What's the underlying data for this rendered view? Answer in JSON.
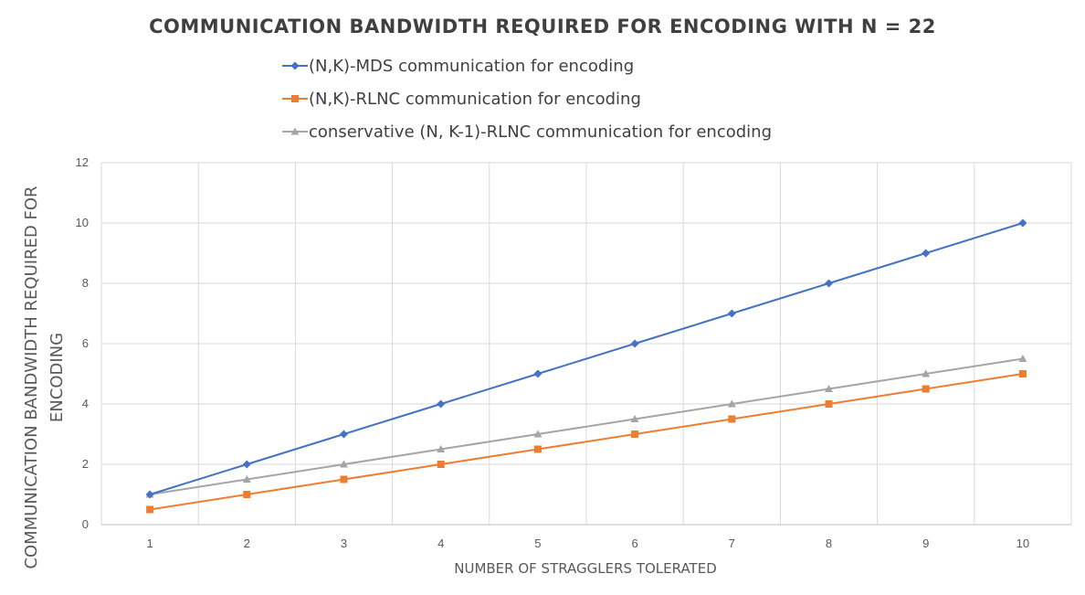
{
  "chart_data": {
    "type": "line",
    "title": "COMMUNICATION BANDWIDTH REQUIRED FOR ENCODING WITH N = 22",
    "xlabel": "NUMBER OF STRAGGLERS TOLERATED",
    "ylabel_lines": [
      "COMMUNICATION BANDWIDTH REQUIRED FOR",
      "ENCODING"
    ],
    "x": [
      1,
      2,
      3,
      4,
      5,
      6,
      7,
      8,
      9,
      10
    ],
    "ylim": [
      0,
      12
    ],
    "yticks": [
      0,
      2,
      4,
      6,
      8,
      10,
      12
    ],
    "grid": true,
    "legend_position": "top",
    "series": [
      {
        "name": "(N,K)-MDS communication for encoding",
        "marker": "diamond",
        "color": "#4472c4",
        "values": [
          1,
          2,
          3,
          4,
          5,
          6,
          7,
          8,
          9,
          10
        ]
      },
      {
        "name": "(N,K)-RLNC communication for encoding",
        "marker": "square",
        "color": "#ed7d31",
        "values": [
          0.5,
          1,
          1.5,
          2,
          2.5,
          3,
          3.5,
          4,
          4.5,
          5
        ]
      },
      {
        "name": "conservative (N, K-1)-RLNC communication for encoding",
        "marker": "triangle",
        "color": "#a5a5a5",
        "values": [
          1,
          1.5,
          2,
          2.5,
          3,
          3.5,
          4,
          4.5,
          5,
          5.5
        ]
      }
    ]
  }
}
